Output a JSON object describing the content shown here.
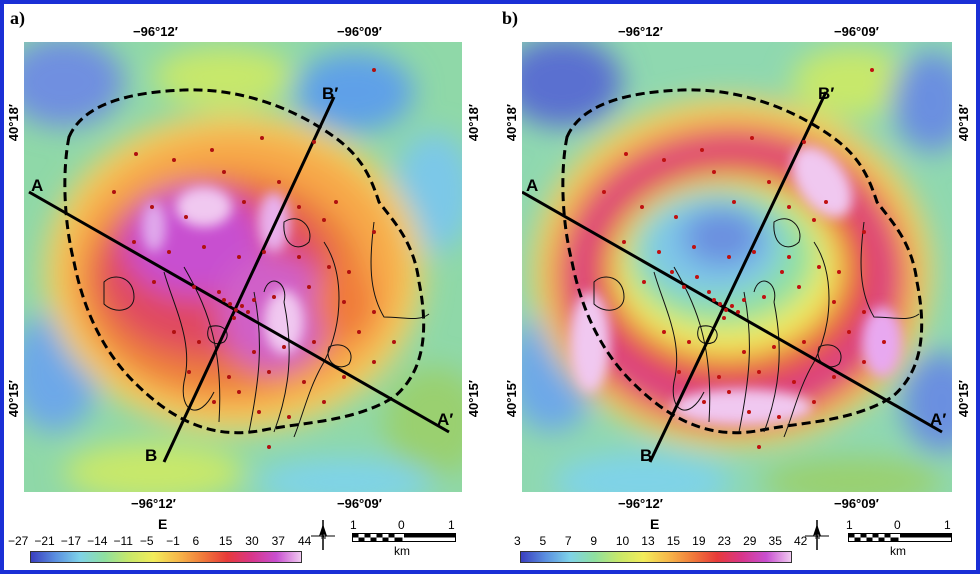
{
  "panels": [
    {
      "label": "a)",
      "top_lon_left": "−96°12′",
      "top_lon_right": "−96°09′",
      "bottom_lon_left": "−96°12′",
      "bottom_lon_right": "−96°09′",
      "lat_top": "40°18′",
      "lat_bottom": "40°15′",
      "profile_a": "A",
      "profile_a_prime": "A′",
      "profile_b": "B",
      "profile_b_prime": "B′",
      "legend_title": "E",
      "legend_ticks": [
        "−27",
        "−21",
        "−17",
        "−14",
        "−11",
        "−5",
        "−1",
        "6",
        "15",
        "30",
        "37",
        "44"
      ],
      "scale_labels": [
        "1",
        "0",
        "1"
      ],
      "scale_unit": "km"
    },
    {
      "label": "b)",
      "top_lon_left": "−96°12′",
      "top_lon_right": "−96°09′",
      "bottom_lon_left": "−96°12′",
      "bottom_lon_right": "−96°09′",
      "lat_top": "40°18′",
      "lat_bottom": "40°15′",
      "profile_a": "A",
      "profile_a_prime": "A′",
      "profile_b": "B",
      "profile_b_prime": "B′",
      "legend_title": "E",
      "legend_ticks": [
        "3",
        "5",
        "7",
        "9",
        "10",
        "13",
        "15",
        "19",
        "23",
        "29",
        "35",
        "42"
      ],
      "scale_labels": [
        "1",
        "0",
        "1"
      ],
      "scale_unit": "km"
    }
  ],
  "colors": {
    "frame": "#1a2fd6",
    "ramp": [
      "#3a3fbf",
      "#5a8fe0",
      "#7fd3e8",
      "#8fe0a0",
      "#c8e86a",
      "#f2ec5a",
      "#f7b84a",
      "#f07a3a",
      "#e83a3a",
      "#d8368a",
      "#c84fd0",
      "#f0c8f0"
    ]
  },
  "north_icon": "north-arrow-icon"
}
